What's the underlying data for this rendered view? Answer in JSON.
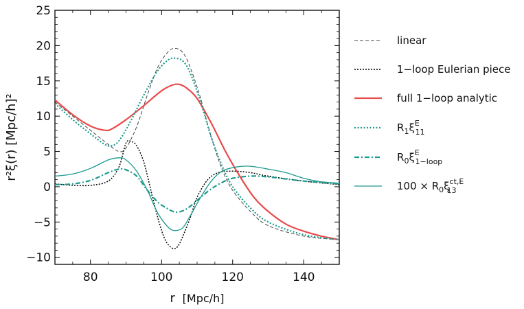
{
  "chart_data": {
    "type": "line",
    "title": "",
    "xlabel": "r",
    "xlabel_unit": "[Mpc/h]",
    "ylabel": "r²ξ(r) [Mpc/h]²",
    "xlim": [
      70,
      150
    ],
    "ylim": [
      -11,
      25
    ],
    "xticks": [
      80,
      100,
      120,
      140
    ],
    "yticks": [
      -10,
      -5,
      0,
      5,
      10,
      15,
      20,
      25
    ],
    "xtick_labels": [
      "80",
      "100",
      "120",
      "140"
    ],
    "ytick_labels": [
      "−10",
      "−5",
      "0",
      "5",
      "10",
      "15",
      "20",
      "25"
    ],
    "grid": false,
    "legend_position": "right-outside",
    "series": [
      {
        "name": "linear",
        "legend": {
          "main": "linear"
        },
        "color": "#444444",
        "style": "dashed-thin",
        "points": [
          [
            70,
            12.0
          ],
          [
            75,
            10.0
          ],
          [
            80,
            8.0
          ],
          [
            85,
            6.0
          ],
          [
            88,
            5.0
          ],
          [
            90,
            5.5
          ],
          [
            93,
            8.5
          ],
          [
            96,
            13.0
          ],
          [
            99,
            17.0
          ],
          [
            102,
            19.2
          ],
          [
            104,
            19.6
          ],
          [
            106,
            19.0
          ],
          [
            108,
            17.0
          ],
          [
            111,
            12.5
          ],
          [
            114,
            7.0
          ],
          [
            117,
            2.5
          ],
          [
            120,
            -0.5
          ],
          [
            125,
            -3.5
          ],
          [
            130,
            -5.5
          ],
          [
            140,
            -7.0
          ],
          [
            150,
            -7.5
          ]
        ]
      },
      {
        "name": "1-loop Eulerian piece",
        "legend": {
          "main": "1−loop Eulerian piece"
        },
        "color": "#000000",
        "style": "dotted",
        "points": [
          [
            70,
            0.4
          ],
          [
            75,
            0.2
          ],
          [
            80,
            0.2
          ],
          [
            85,
            0.8
          ],
          [
            88,
            2.8
          ],
          [
            90,
            6.2
          ],
          [
            91.5,
            6.4
          ],
          [
            93,
            5.8
          ],
          [
            95,
            3.5
          ],
          [
            97,
            -0.5
          ],
          [
            99,
            -4.5
          ],
          [
            101,
            -7.5
          ],
          [
            103,
            -8.7
          ],
          [
            104.5,
            -8.5
          ],
          [
            106,
            -7.0
          ],
          [
            108,
            -4.5
          ],
          [
            110,
            -1.5
          ],
          [
            113,
            1.0
          ],
          [
            116,
            2.0
          ],
          [
            120,
            2.2
          ],
          [
            125,
            2.0
          ],
          [
            130,
            1.5
          ],
          [
            140,
            0.8
          ],
          [
            150,
            0.3
          ]
        ]
      },
      {
        "name": "full 1-loop analytic",
        "legend": {
          "main": "full 1−loop analytic"
        },
        "color": "#e84b4b",
        "style": "solid-thick",
        "points": [
          [
            70,
            12.3
          ],
          [
            75,
            10.2
          ],
          [
            80,
            8.6
          ],
          [
            84,
            8.0
          ],
          [
            86,
            8.2
          ],
          [
            90,
            9.5
          ],
          [
            95,
            11.5
          ],
          [
            100,
            13.6
          ],
          [
            103,
            14.4
          ],
          [
            105,
            14.5
          ],
          [
            107,
            14.0
          ],
          [
            110,
            12.5
          ],
          [
            114,
            9.0
          ],
          [
            118,
            5.0
          ],
          [
            122,
            1.5
          ],
          [
            126,
            -1.5
          ],
          [
            130,
            -3.5
          ],
          [
            135,
            -5.3
          ],
          [
            140,
            -6.3
          ],
          [
            145,
            -7.0
          ],
          [
            150,
            -7.5
          ]
        ]
      },
      {
        "name": "R1 xi11",
        "legend": {
          "main": "R",
          "sub1": "1",
          "main2": "ξ",
          "sup": "E",
          "sub2": "11"
        },
        "color": "#1a9a8c",
        "style": "dotted-thick",
        "points": [
          [
            70,
            11.8
          ],
          [
            75,
            9.5
          ],
          [
            80,
            7.5
          ],
          [
            84,
            6.0
          ],
          [
            86,
            5.8
          ],
          [
            88,
            6.5
          ],
          [
            91,
            9.0
          ],
          [
            95,
            13.0
          ],
          [
            99,
            16.5
          ],
          [
            102,
            18.0
          ],
          [
            104,
            18.2
          ],
          [
            106,
            17.8
          ],
          [
            108,
            16.2
          ],
          [
            111,
            12.0
          ],
          [
            114,
            7.0
          ],
          [
            117,
            3.0
          ],
          [
            120,
            0.0
          ],
          [
            125,
            -3.0
          ],
          [
            130,
            -5.0
          ],
          [
            140,
            -6.8
          ],
          [
            150,
            -7.5
          ]
        ]
      },
      {
        "name": "R0 xi1-loop",
        "legend": {
          "main": "R",
          "sub1": "0",
          "main2": "ξ",
          "sup": "E",
          "sub2": "1−loop"
        },
        "color": "#1a9a8c",
        "style": "dashdot",
        "points": [
          [
            70,
            0.3
          ],
          [
            75,
            0.4
          ],
          [
            80,
            0.9
          ],
          [
            85,
            2.0
          ],
          [
            88,
            2.5
          ],
          [
            90,
            2.4
          ],
          [
            93,
            1.5
          ],
          [
            96,
            -0.5
          ],
          [
            99,
            -2.2
          ],
          [
            102,
            -3.2
          ],
          [
            104,
            -3.6
          ],
          [
            106,
            -3.4
          ],
          [
            108,
            -2.8
          ],
          [
            111,
            -1.5
          ],
          [
            114,
            -0.3
          ],
          [
            117,
            0.6
          ],
          [
            120,
            1.2
          ],
          [
            125,
            1.5
          ],
          [
            130,
            1.4
          ],
          [
            140,
            0.8
          ],
          [
            150,
            0.4
          ]
        ]
      },
      {
        "name": "100 x R0 xi13ct",
        "legend": {
          "main": "100 × R",
          "sub1": "0",
          "main2": "ξ",
          "sup": "ct,E",
          "sub2": "13"
        },
        "color": "#1a9a8c",
        "style": "solid-thin",
        "points": [
          [
            70,
            1.5
          ],
          [
            75,
            1.8
          ],
          [
            80,
            2.6
          ],
          [
            85,
            3.8
          ],
          [
            88,
            4.1
          ],
          [
            90,
            3.8
          ],
          [
            93,
            2.2
          ],
          [
            96,
            -0.5
          ],
          [
            99,
            -3.8
          ],
          [
            102,
            -5.8
          ],
          [
            104,
            -6.2
          ],
          [
            106,
            -5.8
          ],
          [
            108,
            -4.2
          ],
          [
            111,
            -1.5
          ],
          [
            114,
            0.8
          ],
          [
            117,
            2.2
          ],
          [
            121,
            2.8
          ],
          [
            125,
            2.9
          ],
          [
            130,
            2.5
          ],
          [
            135,
            2.0
          ],
          [
            140,
            1.2
          ],
          [
            145,
            0.7
          ],
          [
            150,
            0.5
          ]
        ]
      }
    ]
  }
}
